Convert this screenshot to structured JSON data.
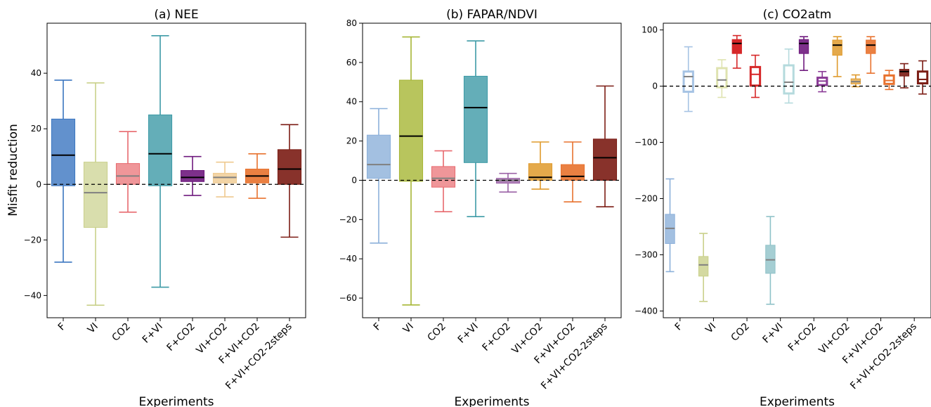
{
  "figure": {
    "ylabel": "Misfit reduction"
  },
  "chart_data": [
    {
      "type": "box",
      "title": "(a) NEE",
      "xlabel": "Experiments",
      "ylabel": "Misfit reduction",
      "ylim": [
        -48,
        58
      ],
      "yticks": [
        -40,
        -20,
        0,
        20,
        40
      ],
      "reference_line": 0,
      "categories": [
        "F",
        "VI",
        "CO2",
        "F+VI",
        "F+CO2",
        "VI+CO2",
        "F+VI+CO2",
        "F+VI+CO2-2steps"
      ],
      "label_gray": [
        false,
        true,
        true,
        false,
        false,
        true,
        false,
        false
      ],
      "series": [
        {
          "groups": [
            {
              "whislo": -28,
              "q1": -0.5,
              "med": 10.5,
              "q3": 23.5,
              "whishi": 37.5,
              "color": "#3b76c0",
              "filled": true,
              "alpha": 0.8,
              "medcolor": "#000000"
            },
            {
              "whislo": -43.5,
              "q1": -15.5,
              "med": -3,
              "q3": 8,
              "whishi": 36.5,
              "color": "#c9d08a",
              "filled": true,
              "alpha": 0.7,
              "medcolor": "#808080"
            },
            {
              "whislo": -10,
              "q1": 0,
              "med": 3,
              "q3": 7.5,
              "whishi": 19,
              "color": "#e8696e",
              "filled": true,
              "alpha": 0.7,
              "medcolor": "#808080"
            },
            {
              "whislo": -37,
              "q1": -0.5,
              "med": 11,
              "q3": 25,
              "whishi": 53.5,
              "color": "#3d9aa6",
              "filled": true,
              "alpha": 0.8,
              "medcolor": "#000000"
            },
            {
              "whislo": -4,
              "q1": 1,
              "med": 2.5,
              "q3": 5,
              "whishi": 10,
              "color": "#6f1a7e",
              "filled": true,
              "alpha": 0.9,
              "medcolor": "#000000"
            },
            {
              "whislo": -4.5,
              "q1": 0.5,
              "med": 2.5,
              "q3": 4,
              "whishi": 8,
              "color": "#efc98f",
              "filled": true,
              "alpha": 0.8,
              "medcolor": "#808080"
            },
            {
              "whislo": -5,
              "q1": 0.5,
              "med": 3,
              "q3": 5.5,
              "whishi": 11,
              "color": "#e8722e",
              "filled": true,
              "alpha": 0.9,
              "medcolor": "#000000"
            },
            {
              "whislo": -19,
              "q1": 0,
              "med": 5.5,
              "q3": 12.5,
              "whishi": 21.5,
              "color": "#7b1c14",
              "filled": true,
              "alpha": 0.9,
              "medcolor": "#000000"
            }
          ]
        }
      ]
    },
    {
      "type": "box",
      "title": "(b) FAPAR/NDVI",
      "xlabel": "Experiments",
      "ylabel": "",
      "ylim": [
        -70,
        80
      ],
      "yticks": [
        -60,
        -40,
        -20,
        0,
        20,
        40,
        60,
        80
      ],
      "reference_line": 0,
      "categories": [
        "F",
        "VI",
        "CO2",
        "F+VI",
        "F+CO2",
        "VI+CO2",
        "F+VI+CO2",
        "F+VI+CO2-2steps"
      ],
      "label_gray": [
        true,
        false,
        true,
        false,
        true,
        false,
        false,
        false
      ],
      "series": [
        {
          "groups": [
            {
              "whislo": -32,
              "q1": 1,
              "med": 8,
              "q3": 23,
              "whishi": 36.5,
              "color": "#8cb0da",
              "filled": true,
              "alpha": 0.8,
              "medcolor": "#808080"
            },
            {
              "whislo": -63.5,
              "q1": -0.5,
              "med": 22.5,
              "q3": 51,
              "whishi": 73,
              "color": "#a6b634",
              "filled": true,
              "alpha": 0.8,
              "medcolor": "#000000"
            },
            {
              "whislo": -16,
              "q1": -3.5,
              "med": 1,
              "q3": 7,
              "whishi": 15,
              "color": "#e8696e",
              "filled": true,
              "alpha": 0.7,
              "medcolor": "#808080"
            },
            {
              "whislo": -18.5,
              "q1": 9,
              "med": 37,
              "q3": 53,
              "whishi": 71,
              "color": "#3d9aa6",
              "filled": true,
              "alpha": 0.8,
              "medcolor": "#000000"
            },
            {
              "whislo": -6,
              "q1": -1.5,
              "med": 0,
              "q3": 1,
              "whishi": 3.5,
              "color": "#9b62a6",
              "filled": true,
              "alpha": 0.8,
              "medcolor": "#808080"
            },
            {
              "whislo": -4.5,
              "q1": 0,
              "med": 1.5,
              "q3": 8.5,
              "whishi": 19.5,
              "color": "#df9a2c",
              "filled": true,
              "alpha": 0.85,
              "medcolor": "#000000"
            },
            {
              "whislo": -11,
              "q1": 0,
              "med": 2,
              "q3": 8,
              "whishi": 19.5,
              "color": "#e8722e",
              "filled": true,
              "alpha": 0.9,
              "medcolor": "#000000"
            },
            {
              "whislo": -13.5,
              "q1": 0,
              "med": 11.5,
              "q3": 21,
              "whishi": 48,
              "color": "#7b1c14",
              "filled": true,
              "alpha": 0.9,
              "medcolor": "#000000"
            }
          ]
        }
      ]
    },
    {
      "type": "box",
      "title": "(c) CO2atm",
      "xlabel": "Experiments",
      "ylabel": "",
      "ylim": [
        -412,
        112
      ],
      "yticks": [
        -400,
        -300,
        -200,
        -100,
        0,
        100
      ],
      "reference_line": 0,
      "categories": [
        "F",
        "VI",
        "CO2",
        "F+VI",
        "F+CO2",
        "VI+CO2",
        "F+VI+CO2",
        "F+VI+CO2-2steps"
      ],
      "label_gray": [
        true,
        true,
        false,
        true,
        false,
        false,
        false,
        false
      ],
      "series": [
        {
          "name": "",
          "offset": -0.3,
          "groups": [
            {
              "whislo": -330,
              "q1": -280,
              "med": -253,
              "q3": -228,
              "whishi": -165,
              "color": "#8cb0da",
              "filled": true,
              "alpha": 0.8,
              "medcolor": "#808080"
            },
            {
              "whislo": -383,
              "q1": -338,
              "med": -318,
              "q3": -303,
              "whishi": -262,
              "color": "#c9d08a",
              "filled": true,
              "alpha": 0.8,
              "medcolor": "#808080"
            },
            {
              "whislo": 32,
              "q1": 58,
              "med": 76,
              "q3": 83,
              "whishi": 90,
              "color": "#d62728",
              "filled": true,
              "alpha": 1,
              "medcolor": "#000000"
            },
            {
              "whislo": -388,
              "q1": -333,
              "med": -309,
              "q3": -283,
              "whishi": -232,
              "color": "#8fc2c8",
              "filled": true,
              "alpha": 0.8,
              "medcolor": "#808080"
            },
            {
              "whislo": 28,
              "q1": 58,
              "med": 76,
              "q3": 83,
              "whishi": 88,
              "color": "#6f1a7e",
              "filled": true,
              "alpha": 0.9,
              "medcolor": "#000000"
            },
            {
              "whislo": 17,
              "q1": 55,
              "med": 73,
              "q3": 82,
              "whishi": 88,
              "color": "#df9a2c",
              "filled": true,
              "alpha": 0.85,
              "medcolor": "#000000"
            },
            {
              "whislo": 23,
              "q1": 58,
              "med": 73,
              "q3": 82,
              "whishi": 88,
              "color": "#e8722e",
              "filled": true,
              "alpha": 0.9,
              "medcolor": "#000000"
            },
            {
              "whislo": -3,
              "q1": 18,
              "med": 26,
              "q3": 30,
              "whishi": 40,
              "color": "#7b1c14",
              "filled": true,
              "alpha": 0.9,
              "medcolor": "#000000"
            }
          ]
        },
        {
          "name": "",
          "offset": 0.25,
          "groups": [
            {
              "whislo": -45,
              "q1": -10,
              "med": 17,
              "q3": 26,
              "whishi": 70,
              "color": "#a6c3e4",
              "filled": false,
              "medcolor": "#808080"
            },
            {
              "whislo": -20,
              "q1": -2,
              "med": 11,
              "q3": 32,
              "whishi": 47,
              "color": "#dfe3b0",
              "filled": false,
              "medcolor": "#808080"
            },
            {
              "whislo": -20,
              "q1": 1,
              "med": 21,
              "q3": 34,
              "whishi": 55,
              "color": "#d62728",
              "filled": false,
              "medcolor": "#d62728"
            },
            {
              "whislo": -30,
              "q1": -13,
              "med": 7,
              "q3": 37,
              "whishi": 66,
              "color": "#b5dadd",
              "filled": false,
              "medcolor": "#808080"
            },
            {
              "whislo": -10,
              "q1": 2,
              "med": 9,
              "q3": 15,
              "whishi": 26,
              "color": "#8a3a96",
              "filled": false,
              "medcolor": "#8a3a96"
            },
            {
              "whislo": -1,
              "q1": 4,
              "med": 8,
              "q3": 13,
              "whishi": 20,
              "color": "#df9a2c",
              "filled": true,
              "alpha": 0.7,
              "medcolor": "#808080"
            },
            {
              "whislo": -6,
              "q1": 4,
              "med": 10,
              "q3": 19,
              "whishi": 28,
              "color": "#e8722e",
              "filled": false,
              "medcolor": "#e8722e"
            },
            {
              "whislo": -14,
              "q1": 5,
              "med": 12,
              "q3": 26,
              "whishi": 45,
              "color": "#7b1c14",
              "filled": false,
              "medcolor": "#7b1c14"
            }
          ]
        }
      ]
    }
  ]
}
